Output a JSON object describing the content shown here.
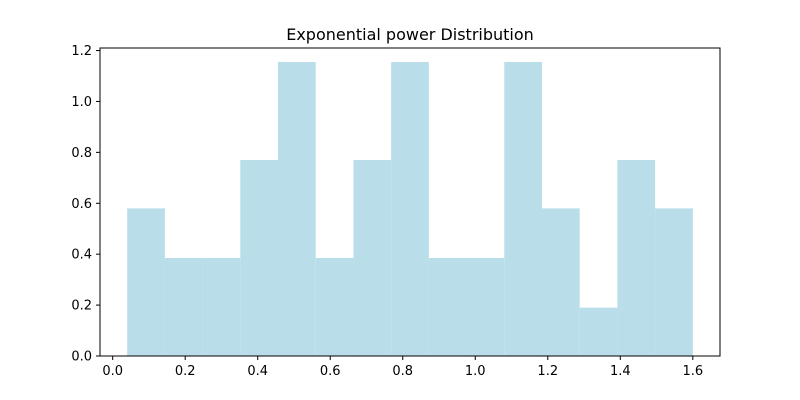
{
  "chart_data": {
    "type": "bar",
    "title": "Exponential power Distribution",
    "xlabel": "",
    "ylabel": "",
    "xlim": [
      -0.035,
      1.675
    ],
    "ylim": [
      0.0,
      1.21
    ],
    "grid": false,
    "bar_color": "#add8e6",
    "bar_opacity": 0.85,
    "bins": [
      {
        "x0": 0.04,
        "x1": 0.144,
        "value": 0.58
      },
      {
        "x0": 0.144,
        "x1": 0.248,
        "value": 0.385
      },
      {
        "x0": 0.248,
        "x1": 0.352,
        "value": 0.385
      },
      {
        "x0": 0.352,
        "x1": 0.456,
        "value": 0.77
      },
      {
        "x0": 0.456,
        "x1": 0.56,
        "value": 1.155
      },
      {
        "x0": 0.56,
        "x1": 0.664,
        "value": 0.385
      },
      {
        "x0": 0.664,
        "x1": 0.768,
        "value": 0.77
      },
      {
        "x0": 0.768,
        "x1": 0.872,
        "value": 1.155
      },
      {
        "x0": 0.872,
        "x1": 0.976,
        "value": 0.385
      },
      {
        "x0": 0.976,
        "x1": 1.08,
        "value": 0.385
      },
      {
        "x0": 1.08,
        "x1": 1.184,
        "value": 1.155
      },
      {
        "x0": 1.184,
        "x1": 1.288,
        "value": 0.58
      },
      {
        "x0": 1.288,
        "x1": 1.392,
        "value": 0.19
      },
      {
        "x0": 1.392,
        "x1": 1.496,
        "value": 0.77
      },
      {
        "x0": 1.496,
        "x1": 1.6,
        "value": 0.58
      }
    ],
    "xticks": [
      0.0,
      0.2,
      0.4,
      0.6,
      0.8,
      1.0,
      1.2,
      1.4,
      1.6
    ],
    "xtick_labels": [
      "0.0",
      "0.2",
      "0.4",
      "0.6",
      "0.8",
      "1.0",
      "1.2",
      "1.4",
      "1.6"
    ],
    "yticks": [
      0.0,
      0.2,
      0.4,
      0.6,
      0.8,
      1.0,
      1.2
    ],
    "ytick_labels": [
      "0.0",
      "0.2",
      "0.4",
      "0.6",
      "0.8",
      "1.0",
      "1.2"
    ]
  }
}
